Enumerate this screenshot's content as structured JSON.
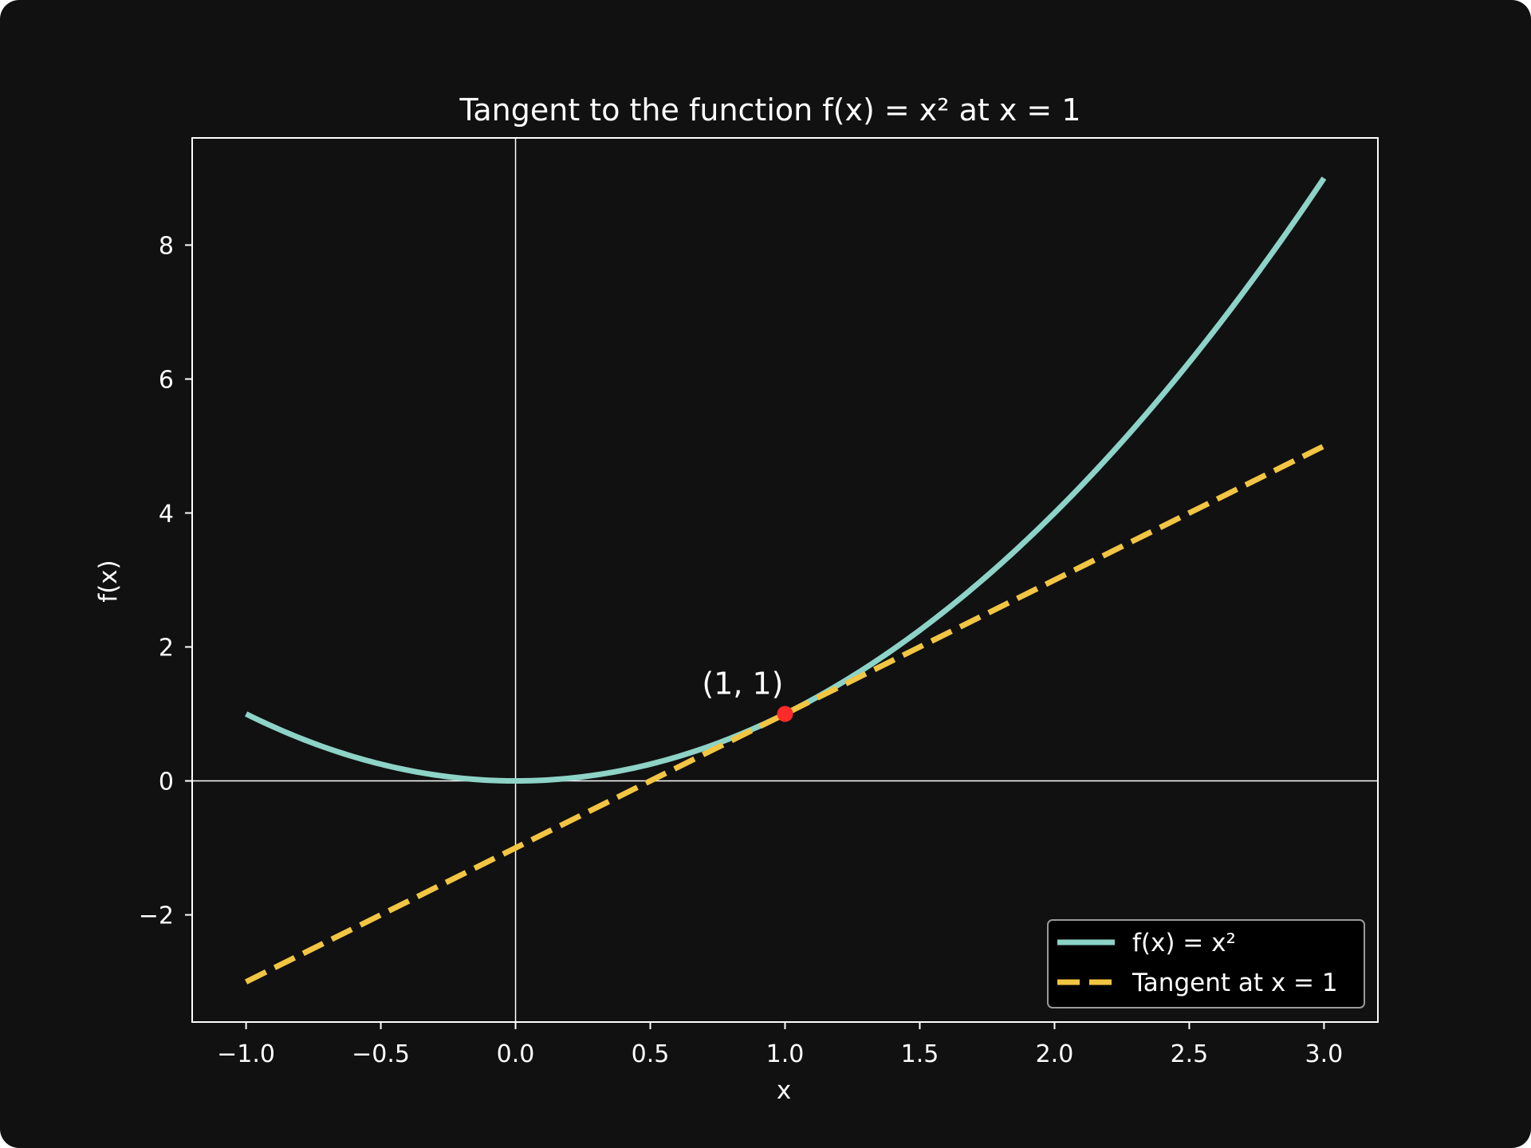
{
  "chart_data": {
    "type": "line",
    "title": "Tangent to the function f(x) = x² at x = 1",
    "xlabel": "x",
    "ylabel": "f(x)",
    "xlim": [
      -1.2,
      3.2
    ],
    "ylim": [
      -3.6,
      9.6
    ],
    "xticks": [
      -1.0,
      -0.5,
      0.0,
      0.5,
      1.0,
      1.5,
      2.0,
      2.5,
      3.0
    ],
    "xtick_labels": [
      "−1.0",
      "−0.5",
      "0.0",
      "0.5",
      "1.0",
      "1.5",
      "2.0",
      "2.5",
      "3.0"
    ],
    "yticks": [
      -2,
      0,
      2,
      4,
      6,
      8
    ],
    "ytick_labels": [
      "−2",
      "0",
      "2",
      "4",
      "6",
      "8"
    ],
    "grid": false,
    "reference_lines": {
      "x": 0,
      "y": 0
    },
    "series": [
      {
        "name": "f(x) = x²",
        "style": "solid",
        "color": "#8dd3c7",
        "function": "x^2",
        "x": [
          -1.0,
          -0.5,
          0.0,
          0.5,
          1.0,
          1.5,
          2.0,
          2.5,
          3.0
        ],
        "y": [
          1.0,
          0.25,
          0.0,
          0.25,
          1.0,
          2.25,
          4.0,
          6.25,
          9.0
        ]
      },
      {
        "name": "Tangent at x = 1",
        "style": "dashed",
        "color": "#f2c542",
        "function": "2x - 1",
        "x": [
          -1.0,
          3.0
        ],
        "y": [
          -3.0,
          5.0
        ]
      }
    ],
    "points": [
      {
        "x": 1,
        "y": 1,
        "label": "(1, 1)",
        "color": "#ff2a2a"
      }
    ],
    "legend": {
      "position": "lower-right"
    }
  }
}
